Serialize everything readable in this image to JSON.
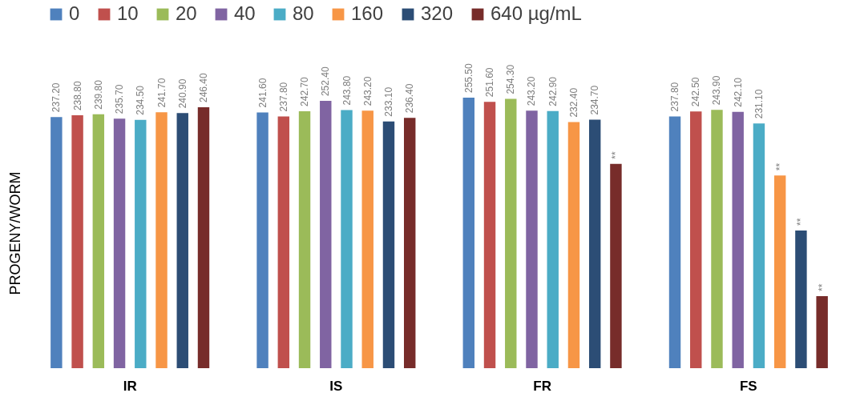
{
  "chart_data": {
    "type": "bar",
    "ylabel": "PROGENY/WORM",
    "legend": "top",
    "categories": [
      "IR",
      "IS",
      "FR",
      "FS"
    ],
    "series": [
      {
        "name": "0",
        "color": "#4f81bd",
        "values": [
          237.2,
          241.6,
          255.5,
          237.8
        ],
        "value_labels": [
          "237.20",
          "241.60",
          "255.50",
          "237.80"
        ]
      },
      {
        "name": "10",
        "color": "#c0504d",
        "values": [
          238.8,
          237.8,
          251.6,
          242.5
        ],
        "value_labels": [
          "238.80",
          "237.80",
          "251.60",
          "242.50"
        ]
      },
      {
        "name": "20",
        "color": "#9bbb59",
        "values": [
          239.8,
          242.7,
          254.3,
          243.9
        ],
        "value_labels": [
          "239.80",
          "242.70",
          "254.30",
          "243.90"
        ]
      },
      {
        "name": "40",
        "color": "#8064a2",
        "values": [
          235.7,
          252.4,
          243.2,
          242.1
        ],
        "value_labels": [
          "235.70",
          "252.40",
          "243.20",
          "242.10"
        ]
      },
      {
        "name": "80",
        "color": "#4bacc6",
        "values": [
          234.5,
          243.8,
          242.9,
          231.1
        ],
        "value_labels": [
          "234.50",
          "243.80",
          "242.90",
          "231.10"
        ]
      },
      {
        "name": "160",
        "color": "#f79646",
        "values": [
          241.7,
          243.2,
          232.4,
          182
        ],
        "value_labels": [
          "241.70",
          "243.20",
          "232.40",
          "**"
        ]
      },
      {
        "name": "320",
        "color": "#2c4d75",
        "values": [
          240.9,
          233.1,
          234.7,
          130
        ],
        "value_labels": [
          "240.90",
          "233.10",
          "234.70",
          "**"
        ]
      },
      {
        "name": "640 µg/mL",
        "color": "#772c2a",
        "values": [
          246.4,
          236.4,
          193,
          68
        ],
        "value_labels": [
          "246.40",
          "236.40",
          "**",
          "**"
        ]
      }
    ]
  }
}
